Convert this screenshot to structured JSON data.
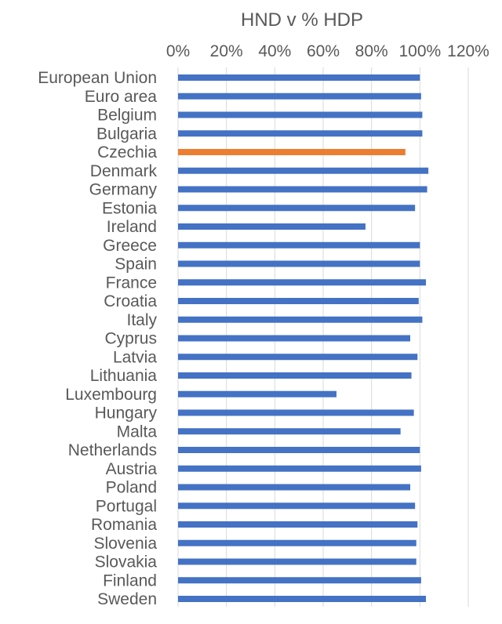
{
  "chart_data": {
    "type": "bar",
    "orientation": "horizontal",
    "title": "HND v % HDP",
    "xlabel": "",
    "ylabel": "",
    "xlim": [
      0,
      1.2
    ],
    "x_ticks": [
      0,
      0.2,
      0.4,
      0.6,
      0.8,
      1.0,
      1.2
    ],
    "x_tick_labels": [
      "0%",
      "20%",
      "40%",
      "60%",
      "80%",
      "100%",
      "120%"
    ],
    "axis_position": "top",
    "grid": true,
    "legend": "none",
    "colors": {
      "default": "#4472C4",
      "highlight": "#ED7D31",
      "grid": "#D9D9D9",
      "text": "#595959"
    },
    "highlight_category": "Czechia",
    "categories": [
      "European Union",
      "Euro area",
      "Belgium",
      "Bulgaria",
      "Czechia",
      "Denmark",
      "Germany",
      "Estonia",
      "Ireland",
      "Greece",
      "Spain",
      "France",
      "Croatia",
      "Italy",
      "Cyprus",
      "Latvia",
      "Lithuania",
      "Luxembourg",
      "Hungary",
      "Malta",
      "Netherlands",
      "Austria",
      "Poland",
      "Portugal",
      "Romania",
      "Slovenia",
      "Slovakia",
      "Finland",
      "Sweden"
    ],
    "values": [
      1.0,
      1.005,
      1.01,
      1.01,
      0.94,
      1.035,
      1.03,
      0.98,
      0.775,
      1.0,
      1.0,
      1.025,
      0.995,
      1.01,
      0.96,
      0.99,
      0.965,
      0.655,
      0.975,
      0.92,
      1.0,
      1.005,
      0.96,
      0.98,
      0.99,
      0.985,
      0.985,
      1.005,
      1.025
    ]
  }
}
